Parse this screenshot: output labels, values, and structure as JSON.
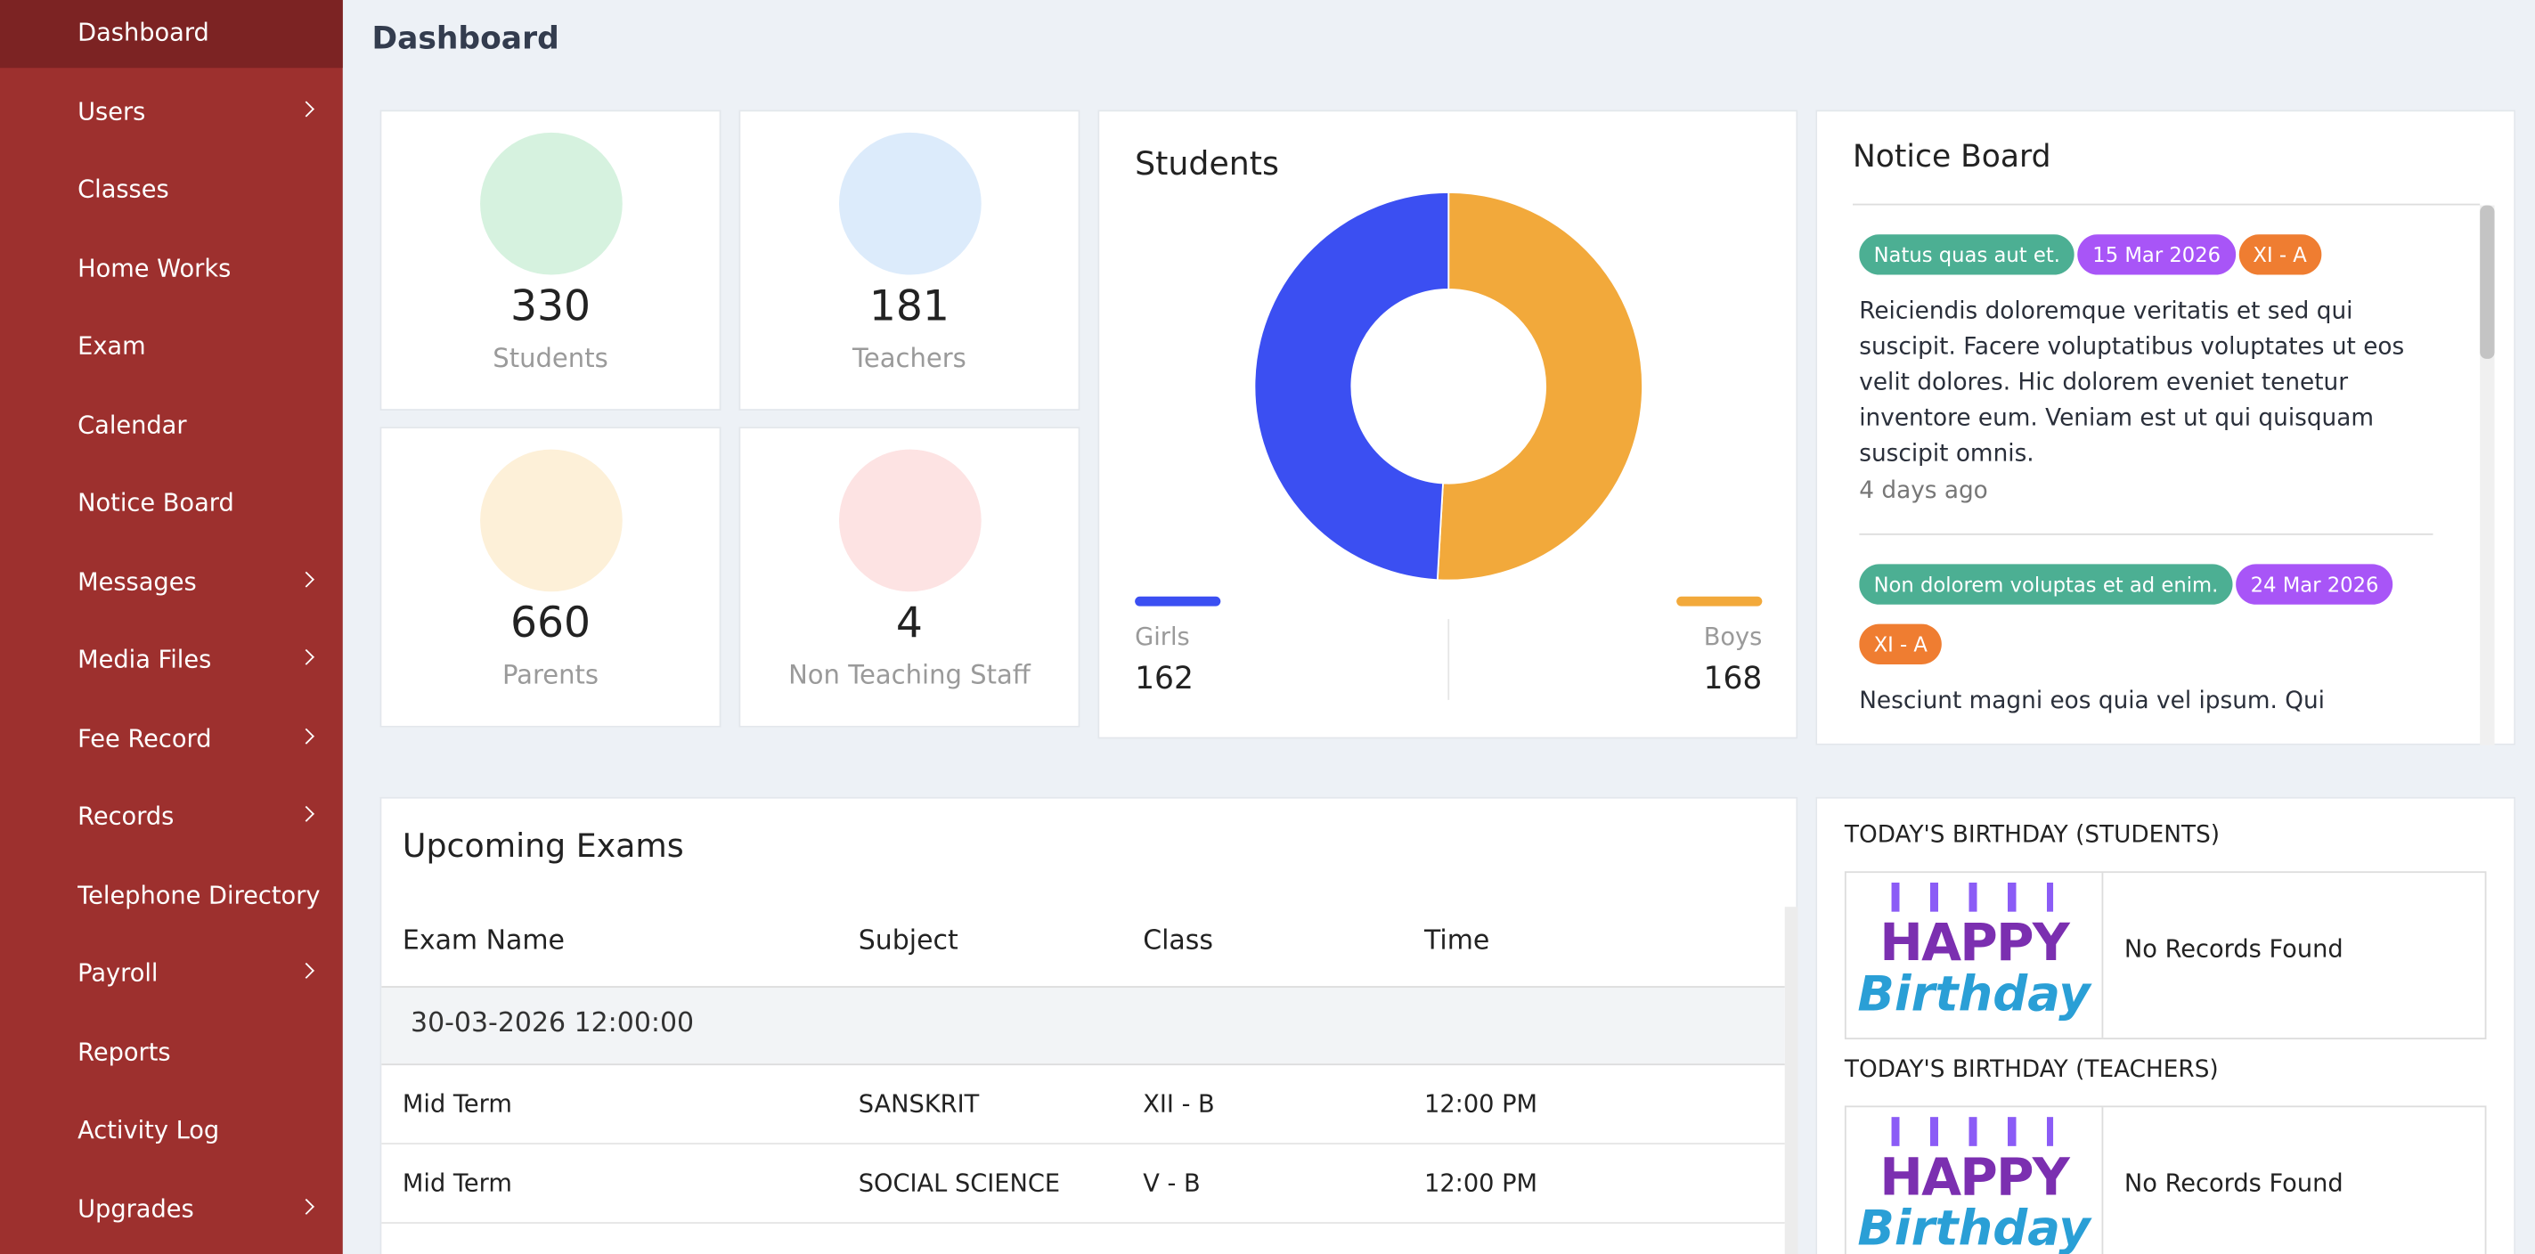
{
  "sidebar": {
    "items": [
      {
        "label": "Dashboard",
        "active": true,
        "has_submenu": false
      },
      {
        "label": "Users",
        "active": false,
        "has_submenu": true
      },
      {
        "label": "Classes",
        "active": false,
        "has_submenu": false
      },
      {
        "label": "Home Works",
        "active": false,
        "has_submenu": false
      },
      {
        "label": "Exam",
        "active": false,
        "has_submenu": false
      },
      {
        "label": "Calendar",
        "active": false,
        "has_submenu": false
      },
      {
        "label": "Notice Board",
        "active": false,
        "has_submenu": false
      },
      {
        "label": "Messages",
        "active": false,
        "has_submenu": true
      },
      {
        "label": "Media Files",
        "active": false,
        "has_submenu": true
      },
      {
        "label": "Fee Record",
        "active": false,
        "has_submenu": true
      },
      {
        "label": "Records",
        "active": false,
        "has_submenu": true
      },
      {
        "label": "Telephone Directory",
        "active": false,
        "has_submenu": false
      },
      {
        "label": "Payroll",
        "active": false,
        "has_submenu": true
      },
      {
        "label": "Reports",
        "active": false,
        "has_submenu": false
      },
      {
        "label": "Activity Log",
        "active": false,
        "has_submenu": false
      },
      {
        "label": "Upgrades",
        "active": false,
        "has_submenu": true
      }
    ]
  },
  "header": {
    "title": "Dashboard"
  },
  "stats": [
    {
      "value": "330",
      "label": "Students",
      "color": "#d6f2df",
      "icon_color": "#3db06b"
    },
    {
      "value": "181",
      "label": "Teachers",
      "color": "#dcebfb",
      "icon_color": "#3a63c9"
    },
    {
      "value": "660",
      "label": "Parents",
      "color": "#fdf0d8",
      "icon_color": "#e0782f"
    },
    {
      "value": "4",
      "label": "Non Teaching Staff",
      "color": "#fde3e3",
      "icon_color": "#d9433b"
    }
  ],
  "students_chart": {
    "type": "donut",
    "title": "Students",
    "categories": [
      "Girls",
      "Boys"
    ],
    "values": [
      162,
      168
    ],
    "colors": [
      "#3b4ff2",
      "#f2a93b"
    ]
  },
  "notice_board": {
    "title": "Notice Board",
    "notices": [
      {
        "badges": [
          {
            "text": "Natus quas aut et.",
            "color": "#4caf93"
          },
          {
            "text": "15 Mar 2026",
            "color": "#a855f7"
          },
          {
            "text": "XI - A",
            "color": "#ef7d31"
          }
        ],
        "body": "Reiciendis doloremque veritatis et sed qui suscipit. Facere voluptatibus voluptates ut eos velit dolores. Hic dolorem eveniet tenetur inventore eum. Veniam est ut qui quisquam suscipit omnis.",
        "time": "4 days ago"
      },
      {
        "badges": [
          {
            "text": "Non dolorem voluptas et ad enim.",
            "color": "#4caf93"
          },
          {
            "text": "24 Mar 2026",
            "color": "#a855f7"
          },
          {
            "text": "XI - A",
            "color": "#ef7d31"
          }
        ],
        "body": "Nesciunt magni eos quia vel ipsum. Qui"
      }
    ]
  },
  "exams": {
    "title": "Upcoming Exams",
    "columns": [
      "Exam Name",
      "Subject",
      "Class",
      "Time"
    ],
    "group": "30-03-2026 12:00:00",
    "rows": [
      [
        "Mid Term",
        "SANSKRIT",
        "XII - B",
        "12:00 PM"
      ],
      [
        "Mid Term",
        "SOCIAL SCIENCE",
        "V - B",
        "12:00 PM"
      ]
    ]
  },
  "birthdays": [
    {
      "title": "TODAY'S BIRTHDAY (STUDENTS)",
      "image_top": "HAPPY",
      "image_bottom": "Birthday",
      "message": "No Records Found"
    },
    {
      "title": "TODAY'S BIRTHDAY (TEACHERS)",
      "image_top": "HAPPY",
      "image_bottom": "Birthday",
      "message": "No Records Found"
    }
  ]
}
